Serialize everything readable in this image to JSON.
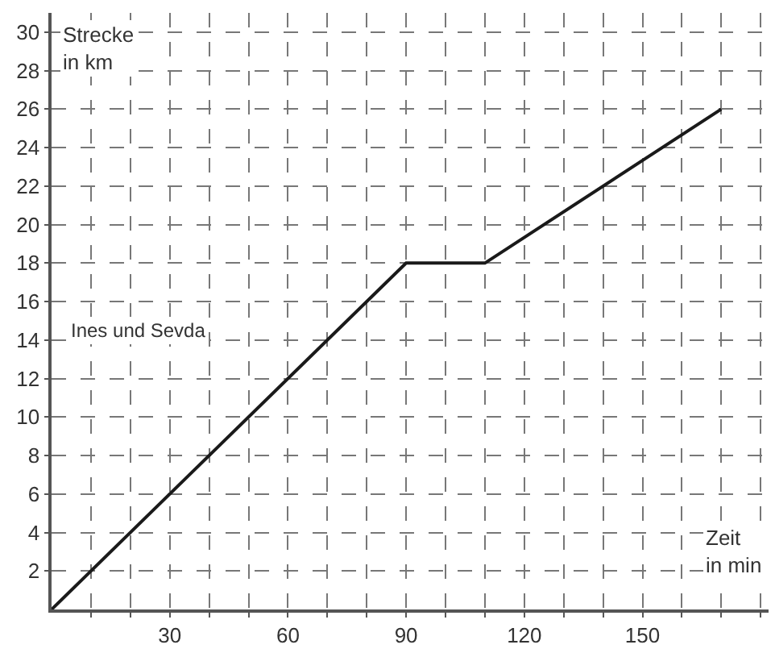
{
  "chart_data": {
    "type": "line",
    "xlabel": "Zeit in min",
    "ylabel": "Strecke in km",
    "series": [
      {
        "name": "Ines und Sevda",
        "color": "#1a1a1a",
        "x": [
          0,
          90,
          110,
          170
        ],
        "values": [
          0,
          18,
          18,
          26
        ]
      }
    ],
    "xlim": [
      0,
      182
    ],
    "ylim": [
      0,
      31
    ],
    "xticks": [
      {
        "value": 10,
        "label": null
      },
      {
        "value": 20,
        "label": null
      },
      30,
      {
        "value": 40,
        "label": null
      },
      {
        "value": 50,
        "label": null
      },
      60,
      {
        "value": 70,
        "label": null
      },
      {
        "value": 80,
        "label": null
      },
      90,
      {
        "value": 100,
        "label": null
      },
      {
        "value": 110,
        "label": null
      },
      120,
      {
        "value": 130,
        "label": null
      },
      {
        "value": 140,
        "label": null
      },
      150,
      {
        "value": 160,
        "label": null
      },
      {
        "value": 170,
        "label": null
      },
      {
        "value": 180,
        "label": null
      }
    ],
    "yticks": [
      2,
      4,
      6,
      8,
      10,
      12,
      14,
      16,
      18,
      20,
      22,
      24,
      26,
      28,
      30
    ],
    "grid": true,
    "legend": false,
    "marker": "none",
    "line_style": "solid"
  }
}
